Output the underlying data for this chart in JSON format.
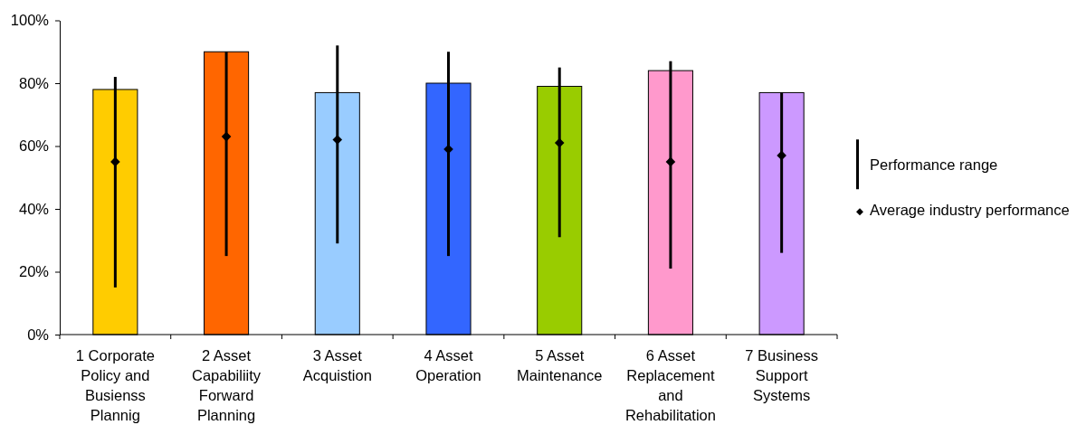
{
  "chart_data": {
    "type": "bar",
    "categories": [
      "1 Corporate Policy and Busienss Plannig",
      "2 Asset Capabiliity Forward Planning",
      "3 Asset Acquistion",
      "4 Asset Operation",
      "5 Asset Maintenance",
      "6 Asset Replacement and Rehabilitation",
      "7 Business Support Systems"
    ],
    "ylim": [
      0,
      100
    ],
    "yticks": [
      {
        "value": 0,
        "label": "0%"
      },
      {
        "value": 20,
        "label": "20%"
      },
      {
        "value": 40,
        "label": "40%"
      },
      {
        "value": 60,
        "label": "60%"
      },
      {
        "value": 80,
        "label": "80%"
      },
      {
        "value": 100,
        "label": "100%"
      }
    ],
    "legend": "right",
    "series": [
      {
        "colors": [
          "#ffcc00",
          "#ff6600",
          "#99ccff",
          "#3366ff",
          "#99cc00",
          "#ff99cc",
          "#cc99ff"
        ],
        "values": [
          78,
          90,
          77,
          80,
          79,
          84,
          77
        ]
      },
      {
        "name": "Performance range",
        "type": "bar",
        "color": "#000000",
        "base": [
          15,
          25,
          29,
          25,
          31,
          21,
          26
        ],
        "values": [
          67,
          65,
          63,
          65,
          54,
          66,
          51
        ]
      },
      {
        "name": "Average industry performance",
        "type": "scatter",
        "color": "#000000",
        "marker": "diamond",
        "values": [
          55,
          63,
          62,
          59,
          61,
          55,
          57
        ]
      }
    ]
  }
}
